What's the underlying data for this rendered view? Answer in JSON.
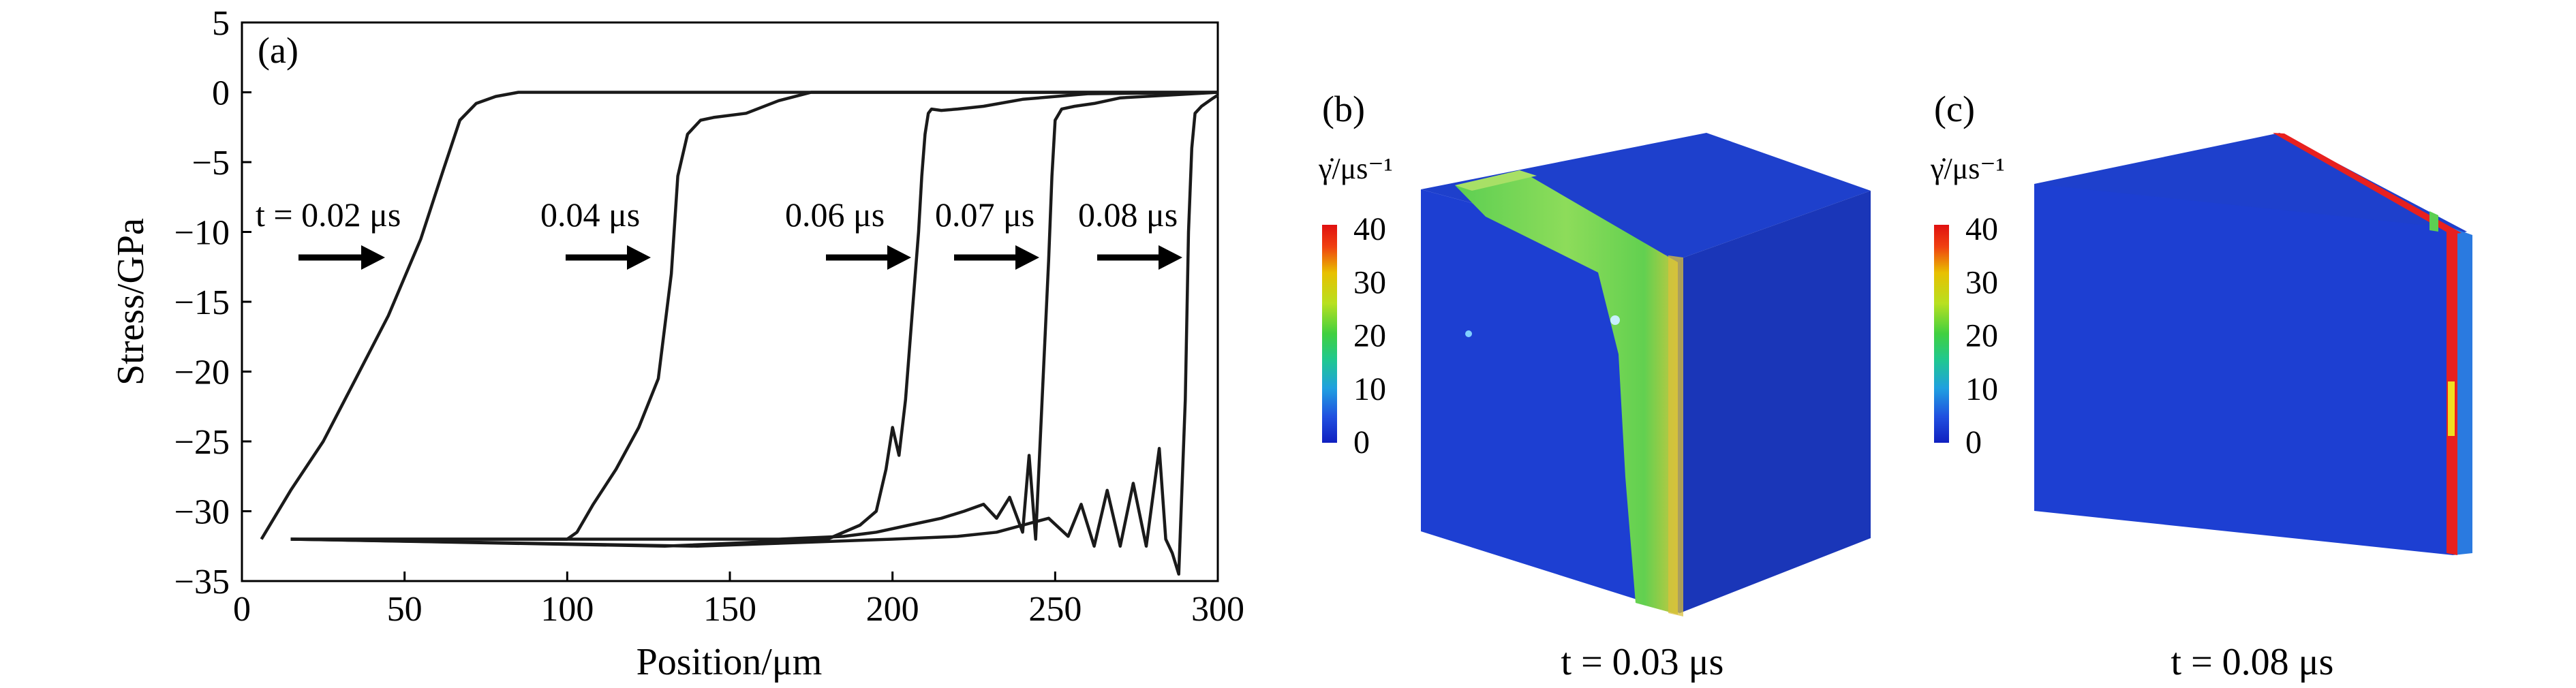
{
  "chart_data": [
    {
      "type": "line",
      "panel_label": "(a)",
      "xlabel": "Position/μm",
      "ylabel": "Stress/GPa",
      "xlim": [
        0,
        300
      ],
      "ylim": [
        -35,
        5
      ],
      "x_ticks": [
        0,
        50,
        100,
        150,
        200,
        250,
        300
      ],
      "y_ticks": [
        5,
        0,
        -5,
        -10,
        -15,
        -20,
        -25,
        -30,
        -35
      ],
      "grid": false,
      "legend": "none",
      "series": [
        {
          "label": "t = 0.02 μs",
          "x": [
            6,
            15,
            25,
            35,
            45,
            55,
            62,
            67,
            72,
            78,
            85,
            95,
            300
          ],
          "y": [
            -32,
            -28.5,
            -25,
            -20.5,
            -16,
            -10.5,
            -5.5,
            -2,
            -0.8,
            -0.3,
            0,
            0,
            0
          ]
        },
        {
          "label": "0.04 μs",
          "x": [
            15,
            100,
            103,
            108,
            115,
            122,
            128,
            132,
            134,
            137,
            141,
            145,
            155,
            165,
            175,
            300
          ],
          "y": [
            -32,
            -32,
            -31.5,
            -29.5,
            -27,
            -24,
            -20.5,
            -13,
            -6,
            -3,
            -2,
            -1.8,
            -1.5,
            -0.6,
            0,
            0
          ]
        },
        {
          "label": "0.06 μs",
          "x": [
            15,
            130,
            180,
            190,
            195,
            198,
            200,
            202,
            204,
            206,
            208,
            209,
            210,
            211,
            212,
            215,
            220,
            228,
            240,
            260,
            300
          ],
          "y": [
            -32,
            -32.5,
            -32,
            -31,
            -30,
            -27,
            -24,
            -26,
            -22,
            -16,
            -10,
            -6,
            -3,
            -1.5,
            -1.2,
            -1.3,
            -1.2,
            -1,
            -0.5,
            -0.1,
            0
          ]
        },
        {
          "label": "0.07 μs",
          "x": [
            15,
            130,
            165,
            185,
            195,
            205,
            215,
            222,
            228,
            232,
            236,
            240,
            242,
            244,
            246,
            248,
            249,
            250,
            252,
            256,
            262,
            270,
            300
          ],
          "y": [
            -32,
            -32,
            -32,
            -31.8,
            -31.5,
            -31,
            -30.5,
            -30,
            -29.5,
            -30.5,
            -29,
            -31.5,
            -26,
            -32,
            -22,
            -12,
            -6,
            -2,
            -1.2,
            -1,
            -0.8,
            -0.4,
            0
          ]
        },
        {
          "label": "0.08 μs",
          "x": [
            15,
            140,
            200,
            220,
            232,
            240,
            248,
            254,
            258,
            262,
            266,
            270,
            274,
            278,
            282,
            284,
            286,
            288,
            290,
            291,
            292,
            293,
            295,
            298,
            300
          ],
          "y": [
            -32,
            -32.5,
            -32,
            -31.8,
            -31.5,
            -31,
            -30.5,
            -31.8,
            -29.5,
            -32.5,
            -28.5,
            -32.5,
            -28,
            -32.5,
            -25.5,
            -32,
            -33,
            -34.5,
            -22,
            -10,
            -4,
            -1.5,
            -1,
            -0.5,
            -0.2
          ]
        }
      ],
      "annotations": [
        "t = 0.02 μs",
        "0.04 μs",
        "0.06 μs",
        "0.07 μs",
        "0.08 μs"
      ]
    },
    {
      "type": "heatmap",
      "panel_label": "(b)",
      "colorbar_title": "γ̇/μs⁻¹",
      "colorbar_ticks": [
        40,
        30,
        20,
        10,
        0
      ],
      "time_label": "t = 0.03 μs"
    },
    {
      "type": "heatmap",
      "panel_label": "(c)",
      "colorbar_title": "γ̇/μs⁻¹",
      "colorbar_ticks": [
        40,
        30,
        20,
        10,
        0
      ],
      "time_label": "t = 0.08 μs"
    }
  ],
  "colors": {
    "line": "#1a1a1a",
    "cube_blue": "#1c3fd0",
    "cube_blue_dark": "#1531a8",
    "shear_band_green": "#6ad24a",
    "shear_band_light": "#9be060",
    "hot_red": "#e8201e"
  }
}
